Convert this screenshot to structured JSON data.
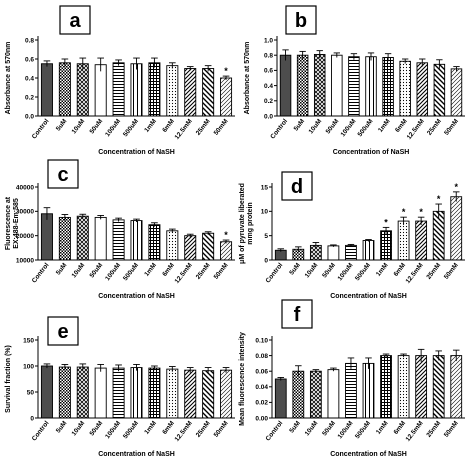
{
  "categories": [
    "Control",
    "5uM",
    "10uM",
    "50uM",
    "100uM",
    "500uM",
    "1mM",
    "6mM",
    "12.5mM",
    "25mM",
    "50mM"
  ],
  "colors": {
    "ink": "#000000",
    "dark": "#4d4d4d",
    "light": "#ffffff",
    "panel_label_bg": "#ffffff"
  },
  "chart_data": [
    {
      "panel": "a",
      "type": "bar",
      "ylabel": "Absorbance at 570nm",
      "xlabel": "Concentration of NaSH",
      "ylim": [
        0,
        0.8
      ],
      "yticks": [
        0.0,
        0.2,
        0.4,
        0.6,
        0.8
      ],
      "tick_labels": [
        "0.0",
        "0.2",
        "0.4",
        "0.6",
        "0.8"
      ],
      "values": [
        0.55,
        0.56,
        0.55,
        0.54,
        0.56,
        0.55,
        0.56,
        0.53,
        0.5,
        0.5,
        0.4
      ],
      "errors": [
        0.03,
        0.04,
        0.06,
        0.07,
        0.03,
        0.06,
        0.05,
        0.03,
        0.02,
        0.03,
        0.02
      ],
      "significant": [
        false,
        false,
        false,
        false,
        false,
        false,
        false,
        false,
        false,
        false,
        true
      ]
    },
    {
      "panel": "b",
      "type": "bar",
      "ylabel": "Absorbance at 570nm",
      "xlabel": "Concentration of NaSH",
      "ylim": [
        0,
        1.0
      ],
      "yticks": [
        0.0,
        0.2,
        0.4,
        0.6,
        0.8,
        1.0
      ],
      "tick_labels": [
        "0.0",
        "0.2",
        "0.4",
        "0.6",
        "0.8",
        "1.0"
      ],
      "values": [
        0.8,
        0.8,
        0.81,
        0.8,
        0.78,
        0.78,
        0.77,
        0.72,
        0.7,
        0.68,
        0.62
      ],
      "errors": [
        0.07,
        0.05,
        0.05,
        0.03,
        0.04,
        0.05,
        0.05,
        0.03,
        0.05,
        0.06,
        0.03
      ],
      "significant": [
        false,
        false,
        false,
        false,
        false,
        false,
        false,
        false,
        false,
        false,
        false
      ]
    },
    {
      "panel": "c",
      "type": "bar",
      "ylabel": "Fluorescence at\nEX:488-Em:585",
      "xlabel": "Concentration of NaSH",
      "ylim": [
        10000,
        40000
      ],
      "yticks": [
        10000,
        20000,
        30000,
        40000
      ],
      "tick_labels": [
        "10000",
        "20000",
        "30000",
        "40000"
      ],
      "values": [
        29000,
        27500,
        28000,
        27500,
        26500,
        26200,
        24500,
        22000,
        20000,
        21000,
        17500
      ],
      "errors": [
        2500,
        1200,
        800,
        800,
        700,
        600,
        800,
        700,
        600,
        600,
        700
      ],
      "significant": [
        false,
        false,
        false,
        false,
        false,
        false,
        false,
        false,
        false,
        false,
        true
      ]
    },
    {
      "panel": "d",
      "type": "bar",
      "ylabel": "μM of pyruvate liberated\nmmg protein",
      "xlabel": "Concentration of NaSH",
      "ylim": [
        0,
        15
      ],
      "yticks": [
        0,
        5,
        10,
        15
      ],
      "tick_labels": [
        "0",
        "5",
        "10",
        "15"
      ],
      "values": [
        2.0,
        2.2,
        3.0,
        2.9,
        3.0,
        4.0,
        6.0,
        8.0,
        8.0,
        10.0,
        13.0
      ],
      "errors": [
        0.3,
        0.5,
        0.6,
        0.2,
        0.2,
        0.2,
        0.7,
        0.8,
        0.8,
        1.5,
        1.0
      ],
      "significant": [
        false,
        false,
        false,
        false,
        false,
        false,
        true,
        true,
        true,
        true,
        true
      ]
    },
    {
      "panel": "e",
      "type": "bar",
      "ylabel": "Survival fraction (%)",
      "xlabel": "Concentration of NaSH",
      "ylim": [
        0,
        150
      ],
      "yticks": [
        0,
        50,
        100,
        150
      ],
      "tick_labels": [
        "0",
        "50",
        "100",
        "150"
      ],
      "values": [
        100,
        98,
        98,
        96,
        96,
        97,
        96,
        94,
        92,
        91,
        92
      ],
      "errors": [
        4,
        5,
        6,
        7,
        6,
        6,
        4,
        5,
        5,
        6,
        5
      ],
      "significant": [
        false,
        false,
        false,
        false,
        false,
        false,
        false,
        false,
        false,
        false,
        false
      ]
    },
    {
      "panel": "f",
      "type": "bar",
      "ylabel": "Mean fluorescence intensity",
      "xlabel": "Concentration of NaSH",
      "ylim": [
        0,
        0.1
      ],
      "yticks": [
        0.0,
        0.02,
        0.04,
        0.06,
        0.08,
        0.1
      ],
      "tick_labels": [
        "0.00",
        "0.02",
        "0.04",
        "0.06",
        "0.08",
        "0.10"
      ],
      "values": [
        0.05,
        0.06,
        0.06,
        0.062,
        0.07,
        0.07,
        0.08,
        0.08,
        0.08,
        0.08,
        0.08
      ],
      "errors": [
        0.002,
        0.007,
        0.002,
        0.002,
        0.007,
        0.007,
        0.002,
        0.002,
        0.008,
        0.006,
        0.007
      ],
      "significant": [
        false,
        false,
        false,
        false,
        false,
        false,
        false,
        false,
        false,
        false,
        false
      ]
    }
  ],
  "significance_marker": "*"
}
